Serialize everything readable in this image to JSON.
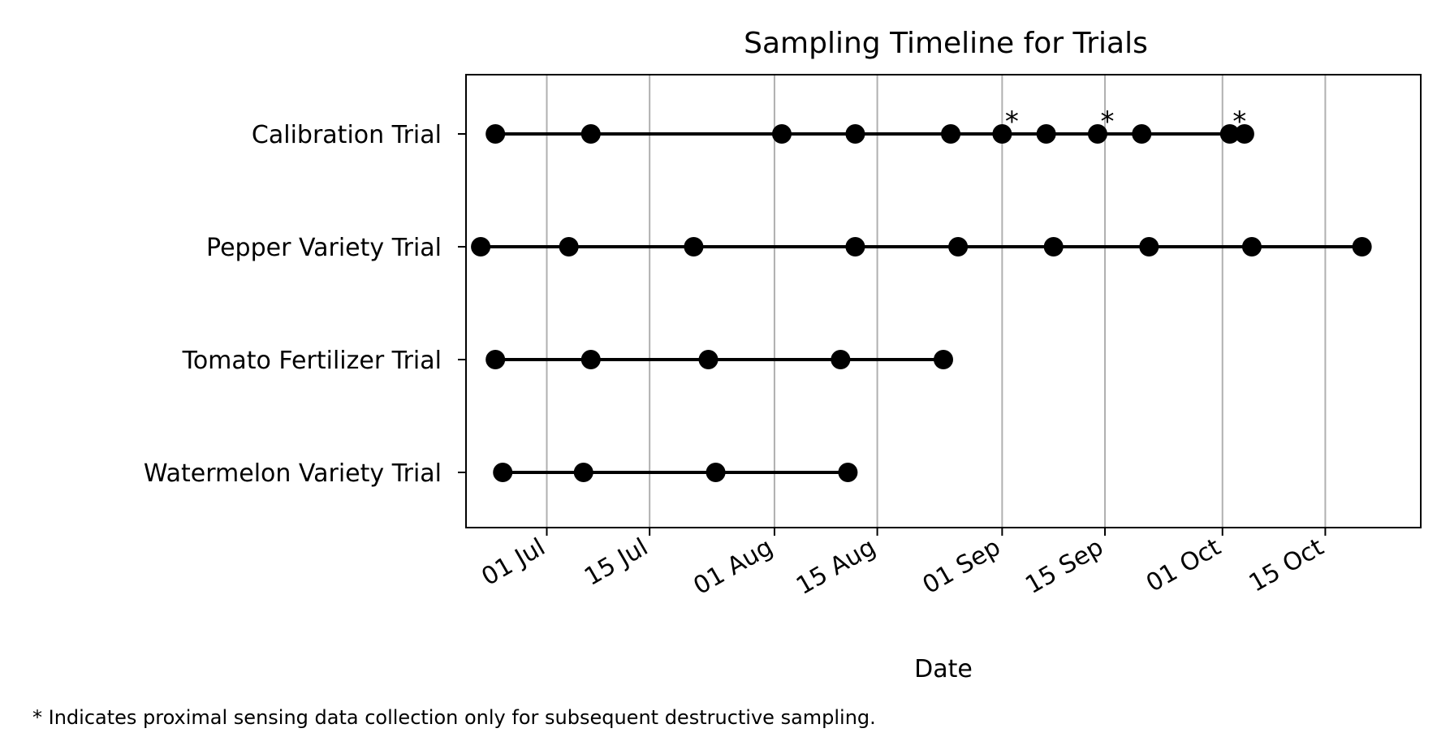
{
  "chart_data": {
    "type": "timeline",
    "title": "Sampling Timeline for Trials",
    "xlabel": "Date",
    "ylabel": "",
    "x_range": [
      "2025-06-20",
      "2025-10-28"
    ],
    "x_ticks": [
      {
        "date": "2025-07-01",
        "label": "01 Jul"
      },
      {
        "date": "2025-07-15",
        "label": "15 Jul"
      },
      {
        "date": "2025-08-01",
        "label": "01 Aug"
      },
      {
        "date": "2025-08-15",
        "label": "15 Aug"
      },
      {
        "date": "2025-09-01",
        "label": "01 Sep"
      },
      {
        "date": "2025-09-15",
        "label": "15 Sep"
      },
      {
        "date": "2025-10-01",
        "label": "01 Oct"
      },
      {
        "date": "2025-10-15",
        "label": "15 Oct"
      }
    ],
    "grid": "x",
    "series": [
      {
        "name": "Calibration Trial",
        "dates": [
          "2025-06-24",
          "2025-07-07",
          "2025-08-02",
          "2025-08-12",
          "2025-08-25",
          "2025-09-01",
          "2025-09-07",
          "2025-09-14",
          "2025-09-20",
          "2025-10-02",
          "2025-10-04"
        ],
        "starred": [
          "2025-09-01",
          "2025-09-14",
          "2025-10-02"
        ]
      },
      {
        "name": "Pepper Variety Trial",
        "dates": [
          "2025-06-22",
          "2025-07-04",
          "2025-07-21",
          "2025-08-12",
          "2025-08-26",
          "2025-09-08",
          "2025-09-21",
          "2025-10-05",
          "2025-10-20"
        ],
        "starred": []
      },
      {
        "name": "Tomato Fertilizer Trial",
        "dates": [
          "2025-06-24",
          "2025-07-07",
          "2025-07-23",
          "2025-08-10",
          "2025-08-24"
        ],
        "starred": []
      },
      {
        "name": "Watermelon Variety Trial",
        "dates": [
          "2025-06-25",
          "2025-07-06",
          "2025-07-24",
          "2025-08-11"
        ],
        "starred": []
      }
    ],
    "star_marker": "*",
    "footnote": "* Indicates proximal sensing data collection only for subsequent destructive sampling."
  }
}
